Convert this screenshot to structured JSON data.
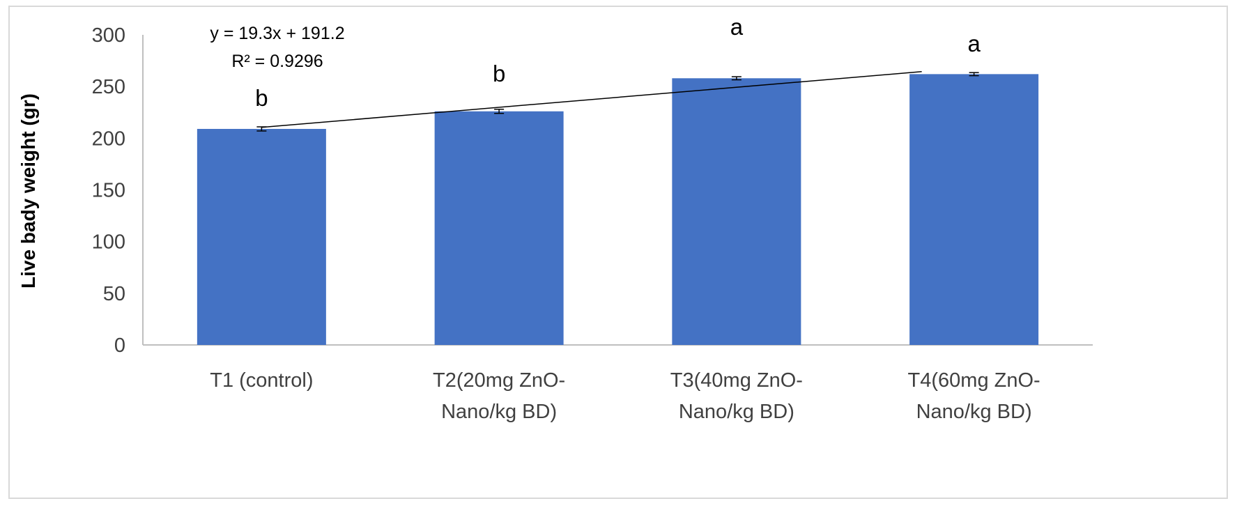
{
  "chart_data": {
    "type": "bar",
    "title": "",
    "xlabel": "",
    "ylabel": "Live badу weight (gr)",
    "ylim": [
      0,
      300
    ],
    "yticks": [
      0,
      50,
      100,
      150,
      200,
      250,
      300
    ],
    "grid": false,
    "legend": "none",
    "categories": [
      [
        "T1 (control)"
      ],
      [
        "T2(20mg  ZnO-",
        "Nano/kg BD)"
      ],
      [
        "T3(40mg  ZnO-",
        "Nano/kg BD)"
      ],
      [
        "T4(60mg  ZnO-",
        "Nano/kg BD)"
      ]
    ],
    "values": [
      209,
      226,
      258,
      262
    ],
    "error_bars": [
      2,
      2,
      1.5,
      1.5
    ],
    "significance_letters": [
      "b",
      "b",
      "a",
      "a"
    ],
    "trendline": {
      "type": "linear",
      "slope": 19.3,
      "intercept": 191.2,
      "equation": "y = 19.3x + 191.2",
      "r2_label": "R² = 0.9296"
    },
    "colors": {
      "bar": "#4472c4",
      "trendline": "#000000",
      "axis": "#bfbfbf",
      "frame": "#d9d9d9"
    }
  }
}
